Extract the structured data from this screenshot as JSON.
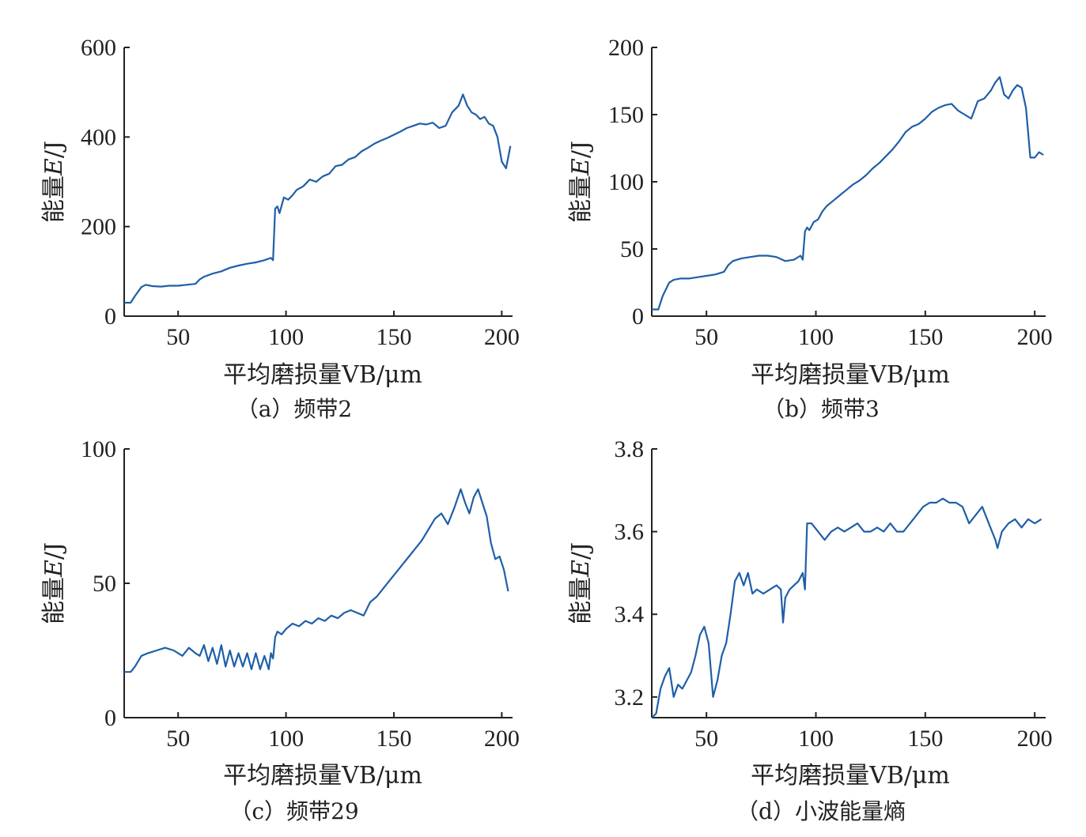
{
  "figure": {
    "line_color": "#1f5fa8",
    "xlabel": "平均磨损量VB/μm",
    "ylabel_prefix": "能量",
    "ylabel_var": "E",
    "ylabel_unit": "/J"
  },
  "chart_data": [
    {
      "type": "line",
      "caption": "（a）频带2",
      "xlabel": "平均磨损量VB/μm",
      "ylabel": "能量E/J",
      "xlim": [
        25,
        205
      ],
      "ylim": [
        0,
        600
      ],
      "xticks": [
        50,
        100,
        150,
        200
      ],
      "yticks": [
        0,
        200,
        400,
        600
      ],
      "ytick_labels": [
        "0",
        "200",
        "400",
        "600"
      ],
      "x": [
        25,
        28,
        30,
        33,
        35,
        38,
        42,
        46,
        50,
        54,
        58,
        60,
        62,
        66,
        70,
        74,
        78,
        82,
        86,
        90,
        93,
        94,
        95,
        96,
        97,
        99,
        101,
        103,
        105,
        108,
        111,
        114,
        117,
        120,
        123,
        126,
        129,
        132,
        135,
        138,
        141,
        144,
        147,
        150,
        153,
        156,
        159,
        162,
        165,
        168,
        171,
        174,
        177,
        180,
        182,
        184,
        186,
        188,
        190,
        192,
        194,
        196,
        198,
        200,
        202,
        204
      ],
      "y": [
        30,
        30,
        45,
        65,
        70,
        67,
        66,
        68,
        68,
        70,
        72,
        82,
        88,
        95,
        100,
        108,
        113,
        117,
        120,
        125,
        130,
        125,
        240,
        245,
        230,
        265,
        260,
        270,
        282,
        290,
        305,
        300,
        312,
        318,
        335,
        338,
        350,
        355,
        368,
        376,
        385,
        392,
        398,
        405,
        412,
        420,
        425,
        430,
        428,
        432,
        420,
        425,
        455,
        470,
        495,
        470,
        455,
        450,
        440,
        445,
        430,
        425,
        400,
        345,
        330,
        380
      ]
    },
    {
      "type": "line",
      "caption": "（b）频带3",
      "xlabel": "平均磨损量VB/μm",
      "ylabel": "能量E/J",
      "xlim": [
        25,
        205
      ],
      "ylim": [
        0,
        200
      ],
      "xticks": [
        50,
        100,
        150,
        200
      ],
      "yticks": [
        0,
        50,
        100,
        150,
        200
      ],
      "ytick_labels": [
        "0",
        "50",
        "100",
        "150",
        "200"
      ],
      "x": [
        25,
        28,
        30,
        33,
        35,
        38,
        42,
        46,
        50,
        54,
        58,
        60,
        62,
        66,
        70,
        74,
        78,
        82,
        86,
        90,
        93,
        94,
        95,
        96,
        97,
        99,
        101,
        103,
        105,
        108,
        111,
        114,
        117,
        120,
        123,
        126,
        129,
        132,
        135,
        138,
        141,
        144,
        147,
        150,
        153,
        156,
        159,
        162,
        165,
        168,
        171,
        174,
        177,
        180,
        182,
        184,
        186,
        188,
        190,
        192,
        194,
        196,
        198,
        200,
        202,
        204
      ],
      "y": [
        5,
        5,
        15,
        25,
        27,
        28,
        28,
        29,
        30,
        31,
        33,
        38,
        41,
        43,
        44,
        45,
        45,
        44,
        41,
        42,
        45,
        42,
        63,
        66,
        64,
        70,
        72,
        78,
        82,
        86,
        90,
        94,
        98,
        101,
        105,
        110,
        114,
        119,
        124,
        130,
        137,
        141,
        143,
        147,
        152,
        155,
        157,
        158,
        153,
        150,
        147,
        160,
        162,
        168,
        174,
        178,
        165,
        162,
        168,
        172,
        170,
        155,
        118,
        118,
        122,
        120
      ]
    },
    {
      "type": "line",
      "caption": "（c）频带29",
      "xlabel": "平均磨损量VB/μm",
      "ylabel": "能量E/J",
      "xlim": [
        25,
        205
      ],
      "ylim": [
        0,
        100
      ],
      "xticks": [
        50,
        100,
        150,
        200
      ],
      "yticks": [
        0,
        50,
        100
      ],
      "ytick_labels": [
        "0",
        "50",
        "100"
      ],
      "x": [
        25,
        28,
        30,
        33,
        36,
        40,
        44,
        48,
        52,
        55,
        58,
        60,
        62,
        64,
        66,
        68,
        70,
        72,
        74,
        76,
        78,
        80,
        82,
        84,
        86,
        88,
        90,
        92,
        93,
        94,
        95,
        96,
        98,
        100,
        103,
        106,
        109,
        112,
        115,
        118,
        121,
        124,
        127,
        130,
        133,
        136,
        139,
        142,
        145,
        148,
        151,
        154,
        157,
        160,
        163,
        166,
        169,
        172,
        175,
        178,
        181,
        183,
        185,
        187,
        189,
        191,
        193,
        195,
        197,
        199,
        201,
        203
      ],
      "y": [
        17,
        17,
        19,
        23,
        24,
        25,
        26,
        25,
        23,
        26,
        24,
        23,
        27,
        21,
        26,
        20,
        27,
        19,
        25,
        19,
        24,
        19,
        24,
        18,
        24,
        18,
        23,
        18,
        24,
        22,
        30,
        32,
        31,
        33,
        35,
        34,
        36,
        35,
        37,
        36,
        38,
        37,
        39,
        40,
        39,
        38,
        43,
        45,
        48,
        51,
        54,
        57,
        60,
        63,
        66,
        70,
        74,
        76,
        72,
        78,
        85,
        80,
        76,
        82,
        85,
        80,
        75,
        65,
        59,
        60,
        55,
        47
      ]
    },
    {
      "type": "line",
      "caption": "（d）小波能量熵",
      "xlabel": "平均磨损量VB/μm",
      "ylabel": "能量E/J",
      "xlim": [
        25,
        205
      ],
      "ylim": [
        3.15,
        3.8
      ],
      "xticks": [
        50,
        100,
        150,
        200
      ],
      "yticks": [
        3.2,
        3.4,
        3.6,
        3.8
      ],
      "ytick_labels": [
        "3.2",
        "3.4",
        "3.6",
        "3.8"
      ],
      "x": [
        25,
        27,
        29,
        31,
        33,
        35,
        37,
        39,
        41,
        43,
        45,
        47,
        49,
        51,
        53,
        55,
        57,
        59,
        61,
        63,
        65,
        67,
        69,
        71,
        73,
        76,
        79,
        82,
        84,
        85,
        86,
        88,
        90,
        92,
        94,
        95,
        96,
        98,
        101,
        104,
        107,
        110,
        113,
        116,
        119,
        122,
        125,
        128,
        131,
        134,
        137,
        140,
        143,
        146,
        149,
        152,
        155,
        158,
        161,
        164,
        167,
        170,
        173,
        176,
        179,
        182,
        183,
        185,
        188,
        191,
        194,
        197,
        200,
        203
      ],
      "y": [
        3.15,
        3.16,
        3.22,
        3.25,
        3.27,
        3.2,
        3.23,
        3.22,
        3.24,
        3.26,
        3.3,
        3.35,
        3.37,
        3.33,
        3.2,
        3.24,
        3.3,
        3.33,
        3.4,
        3.48,
        3.5,
        3.47,
        3.5,
        3.45,
        3.46,
        3.45,
        3.46,
        3.47,
        3.46,
        3.38,
        3.44,
        3.46,
        3.47,
        3.48,
        3.5,
        3.46,
        3.62,
        3.62,
        3.6,
        3.58,
        3.6,
        3.61,
        3.6,
        3.61,
        3.62,
        3.6,
        3.6,
        3.61,
        3.6,
        3.62,
        3.6,
        3.6,
        3.62,
        3.64,
        3.66,
        3.67,
        3.67,
        3.68,
        3.67,
        3.67,
        3.66,
        3.62,
        3.64,
        3.66,
        3.62,
        3.58,
        3.56,
        3.6,
        3.62,
        3.63,
        3.61,
        3.63,
        3.62,
        3.63
      ]
    }
  ]
}
